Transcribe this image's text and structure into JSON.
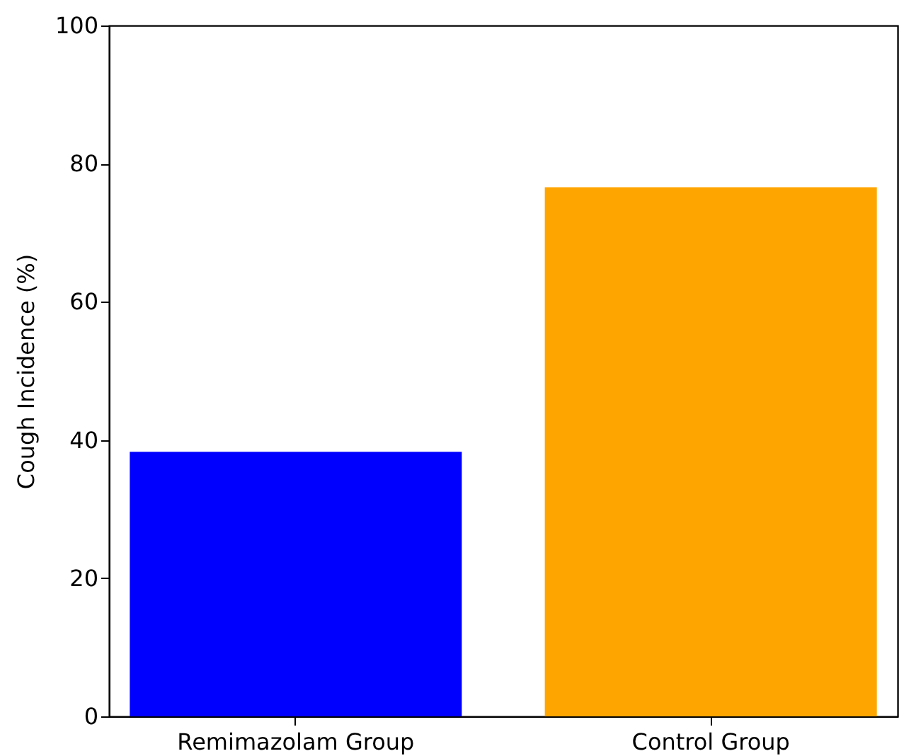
{
  "chart_data": {
    "type": "bar",
    "ylabel": "Cough Incidence (%)",
    "categories": [
      "Remimazolam Group",
      "Control Group"
    ],
    "values": [
      38.3,
      76.6
    ],
    "colors": [
      "#0000ff",
      "#ffa500"
    ],
    "ylim": [
      0,
      100
    ],
    "yticks": [
      0,
      20,
      40,
      60,
      80,
      100
    ],
    "grid": false,
    "legend": false
  }
}
